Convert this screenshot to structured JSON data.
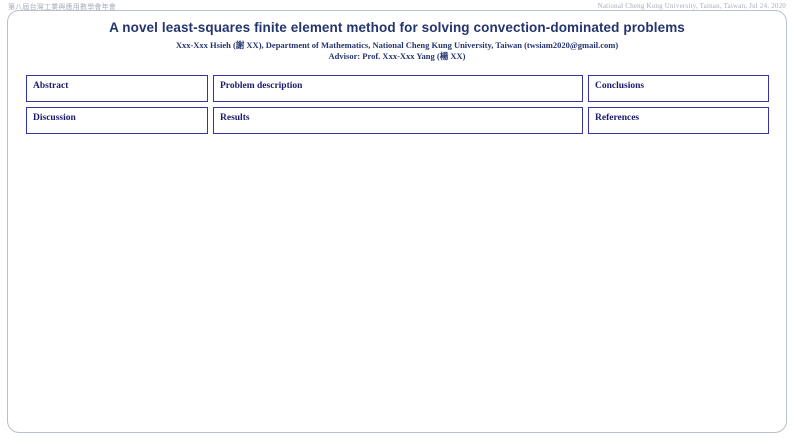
{
  "page": {
    "top_left_note": "第八屆台灣工業與應用數學會年會",
    "top_right_note": "National Cheng Kung University, Tainan, Taiwan, Jul 24, 2020"
  },
  "header": {
    "title": "A novel least-squares finite element method for solving convection-dominated problems",
    "authors": "Xxx-Xxx Hsieh (謝 XX), Department of Mathematics, National Cheng Kung University, Taiwan (twsiam2020@gmail.com)",
    "advisor": "Advisor: Prof. Xxx-Xxx Yang (楊 XX)"
  },
  "sections": {
    "col1": [
      {
        "label": "Abstract"
      },
      {
        "label": "Discussion"
      }
    ],
    "col2": [
      {
        "label": "Problem description"
      },
      {
        "label": "Results"
      }
    ],
    "col3": [
      {
        "label": "Conclusions"
      },
      {
        "label": "References"
      }
    ]
  },
  "colors": {
    "navy": "#24356e",
    "box-border": "#3434a4",
    "box-label": "#1b1b6e",
    "frame-border": "#b8c0cd",
    "note-color": "#a6adbd"
  }
}
